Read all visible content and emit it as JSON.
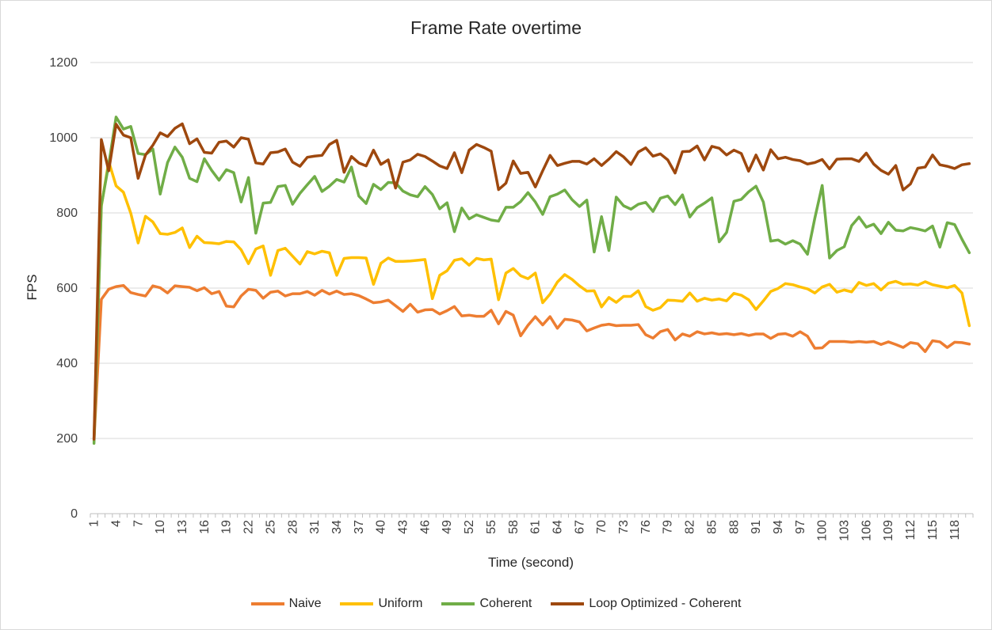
{
  "chart_data": {
    "type": "line",
    "title": "Frame Rate overtime",
    "xlabel": "Time (second)",
    "ylabel": "FPS",
    "ylim": [
      0,
      1200
    ],
    "yticks": [
      0,
      200,
      400,
      600,
      800,
      1000,
      1200
    ],
    "x_start": 1,
    "x_end": 120,
    "x_tick_step": 3,
    "grid": "horizontal",
    "legend_position": "bottom",
    "series": [
      {
        "name": "Naive",
        "color": "#ed7d31",
        "values": [
          195,
          570,
          597,
          604,
          607,
          588,
          583,
          579,
          606,
          601,
          587,
          606,
          604,
          602,
          593,
          601,
          585,
          591,
          552,
          550,
          579,
          597,
          594,
          573,
          589,
          592,
          579,
          585,
          585,
          591,
          581,
          594,
          584,
          592,
          583,
          585,
          580,
          571,
          561,
          563,
          568,
          553,
          538,
          557,
          536,
          542,
          543,
          531,
          540,
          551,
          526,
          528,
          525,
          525,
          541,
          505,
          538,
          528,
          473,
          501,
          524,
          502,
          524,
          493,
          517,
          515,
          510,
          486,
          494,
          501,
          504,
          500,
          501,
          501,
          503,
          476,
          467,
          484,
          490,
          462,
          478,
          472,
          484,
          478,
          481,
          477,
          479,
          476,
          479,
          474,
          478,
          478,
          466,
          477,
          479,
          472,
          484,
          472,
          440,
          441,
          458,
          458,
          458,
          456,
          458,
          456,
          458,
          450,
          457,
          450,
          442,
          455,
          452,
          431,
          460,
          457,
          442,
          456,
          455,
          451
        ]
      },
      {
        "name": "Uniform",
        "color": "#ffc000",
        "values": [
          200,
          818,
          937,
          872,
          855,
          799,
          720,
          791,
          776,
          745,
          743,
          748,
          760,
          708,
          738,
          721,
          720,
          718,
          724,
          723,
          702,
          665,
          704,
          712,
          634,
          700,
          706,
          685,
          664,
          697,
          691,
          698,
          694,
          634,
          679,
          681,
          681,
          680,
          610,
          666,
          680,
          671,
          671,
          672,
          674,
          676,
          572,
          634,
          646,
          674,
          678,
          661,
          679,
          675,
          677,
          569,
          640,
          652,
          633,
          625,
          640,
          561,
          584,
          616,
          636,
          623,
          606,
          592,
          593,
          550,
          575,
          562,
          578,
          578,
          593,
          551,
          541,
          548,
          568,
          567,
          565,
          587,
          565,
          573,
          568,
          571,
          566,
          586,
          581,
          569,
          543,
          566,
          591,
          599,
          612,
          609,
          603,
          598,
          587,
          603,
          610,
          589,
          595,
          590,
          615,
          607,
          612,
          595,
          613,
          618,
          610,
          611,
          608,
          617,
          609,
          605,
          601,
          607,
          587,
          500
        ]
      },
      {
        "name": "Coherent",
        "color": "#70ad47",
        "values": [
          187,
          820,
          929,
          1055,
          1023,
          1030,
          958,
          955,
          970,
          850,
          934,
          975,
          948,
          892,
          883,
          944,
          913,
          887,
          915,
          907,
          829,
          894,
          746,
          826,
          828,
          870,
          873,
          823,
          852,
          875,
          897,
          857,
          871,
          889,
          882,
          922,
          845,
          825,
          876,
          862,
          881,
          880,
          858,
          848,
          843,
          870,
          849,
          811,
          827,
          750,
          813,
          784,
          795,
          788,
          781,
          778,
          815,
          815,
          830,
          854,
          829,
          796,
          843,
          850,
          861,
          835,
          817,
          834,
          696,
          790,
          700,
          842,
          819,
          810,
          823,
          828,
          804,
          839,
          845,
          822,
          848,
          789,
          814,
          826,
          840,
          723,
          748,
          831,
          836,
          856,
          871,
          829,
          725,
          728,
          717,
          726,
          717,
          690,
          786,
          873,
          680,
          700,
          710,
          766,
          789,
          762,
          770,
          745,
          775,
          754,
          752,
          761,
          757,
          752,
          765,
          709,
          774,
          769,
          730,
          694
        ]
      },
      {
        "name": "Loop Optimized - Coherent",
        "color": "#9e480e",
        "values": [
          198,
          995,
          912,
          1036,
          1007,
          1000,
          892,
          954,
          980,
          1013,
          1003,
          1025,
          1037,
          984,
          997,
          961,
          959,
          988,
          991,
          975,
          1000,
          996,
          933,
          930,
          960,
          962,
          970,
          935,
          924,
          948,
          951,
          953,
          982,
          993,
          908,
          950,
          933,
          925,
          967,
          929,
          941,
          866,
          935,
          941,
          956,
          950,
          938,
          925,
          918,
          960,
          907,
          967,
          982,
          974,
          964,
          862,
          879,
          938,
          905,
          908,
          869,
          912,
          953,
          926,
          932,
          937,
          937,
          930,
          944,
          926,
          943,
          963,
          949,
          929,
          962,
          973,
          951,
          957,
          941,
          906,
          963,
          964,
          978,
          941,
          977,
          972,
          954,
          967,
          958,
          911,
          954,
          914,
          968,
          944,
          948,
          942,
          939,
          930,
          934,
          942,
          917,
          943,
          944,
          944,
          937,
          959,
          930,
          913,
          903,
          926,
          861,
          877,
          919,
          922,
          954,
          928,
          924,
          918,
          928,
          931
        ]
      }
    ]
  }
}
